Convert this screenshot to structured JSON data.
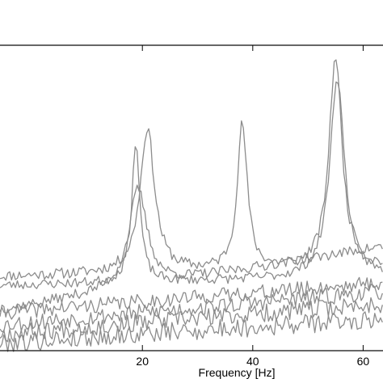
{
  "chart_data": {
    "type": "line",
    "xlabel": "Frequency [Hz]",
    "ylabel": "",
    "xlim": [
      -5.8,
      63.6
    ],
    "ylim": [
      0,
      1
    ],
    "x_ticks": [
      20,
      40,
      60
    ],
    "x_tick_labels": [
      "20",
      "40",
      "60"
    ],
    "grid": false,
    "line_color": "#8c8c8c",
    "series": [
      {
        "peaks": [
          {
            "x": 20.9,
            "y": 0.73,
            "w": 1.6
          },
          {
            "x": 38.1,
            "y": 0.74,
            "w": 1.1
          },
          {
            "x": 55.0,
            "y": 0.97,
            "w": 1.4
          }
        ],
        "base": [
          0.24,
          0.27
        ],
        "noise": 0.018,
        "seed": 11
      },
      {
        "peaks": [
          {
            "x": 18.8,
            "y": 0.68,
            "w": 0.9
          },
          {
            "x": 55.3,
            "y": 0.9,
            "w": 1.6
          }
        ],
        "base": [
          0.21,
          0.24
        ],
        "noise": 0.016,
        "seed": 23
      },
      {
        "peaks": [
          {
            "x": 19.2,
            "y": 0.53,
            "w": 2.0
          }
        ],
        "base": [
          0.13,
          0.34
        ],
        "noise": 0.017,
        "seed": 37
      },
      {
        "peaks": [],
        "base": [
          0.12,
          0.22
        ],
        "noise": 0.025,
        "seed": 41
      },
      {
        "peaks": [],
        "base": [
          0.08,
          0.19
        ],
        "noise": 0.028,
        "seed": 53
      },
      {
        "peaks": [],
        "base": [
          0.05,
          0.15
        ],
        "noise": 0.03,
        "seed": 67
      },
      {
        "peaks": [],
        "base": [
          0.02,
          0.1
        ],
        "noise": 0.032,
        "seed": 79
      }
    ]
  }
}
